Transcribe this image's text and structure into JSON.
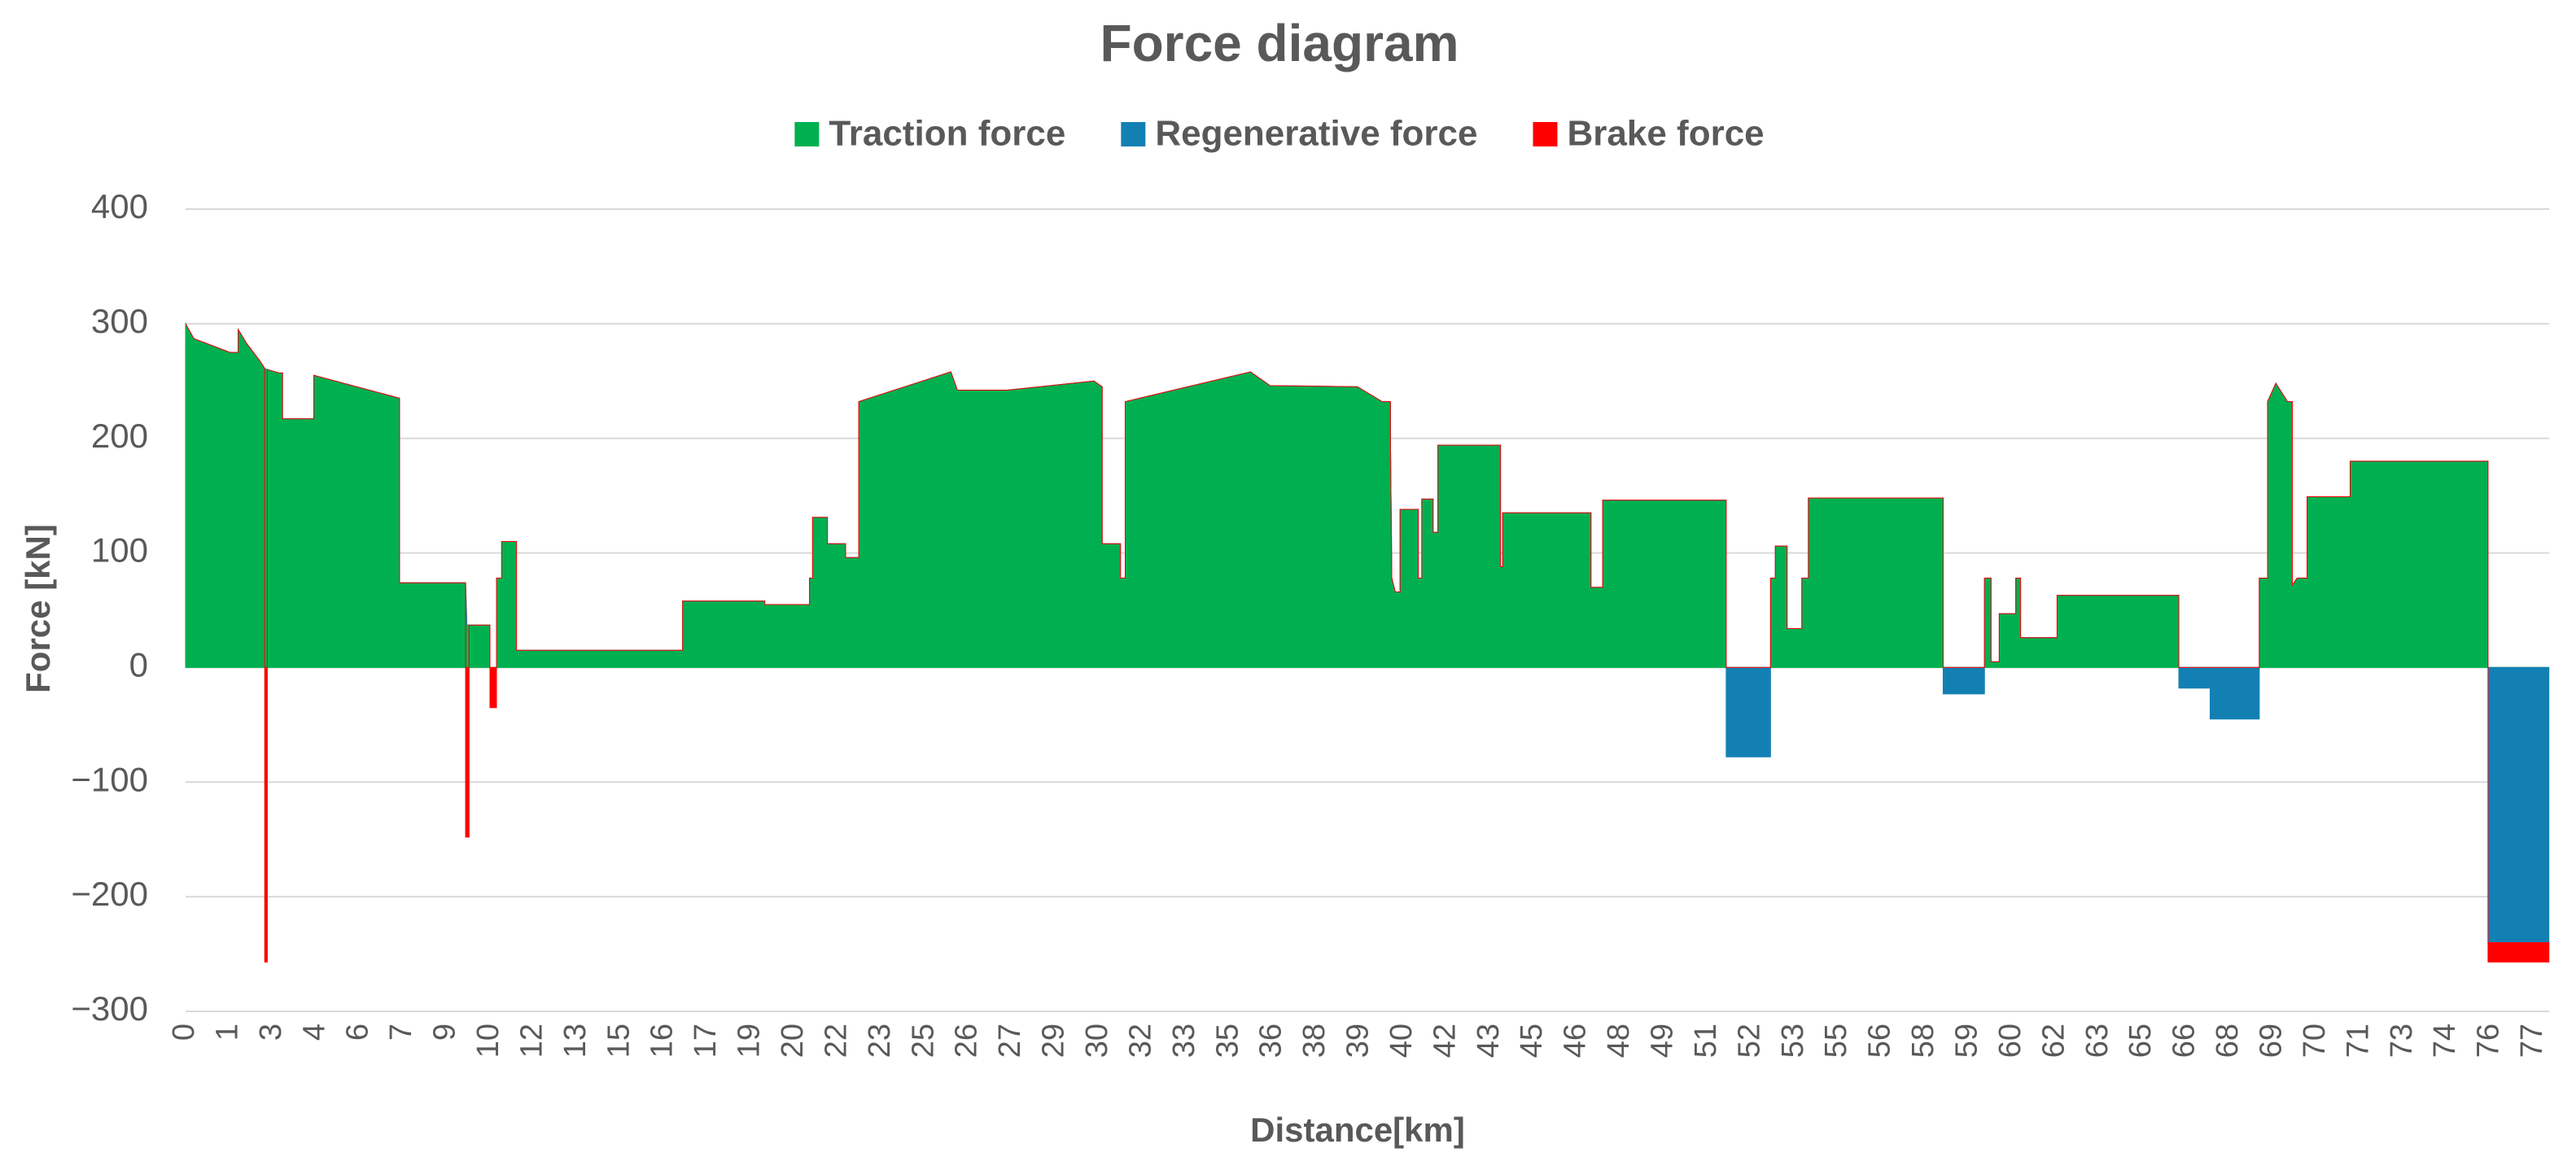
{
  "chart_data": {
    "type": "area",
    "title": "Force diagram",
    "x_label": "Distance[km]",
    "y_label": "Force [kN]",
    "stacked": true,
    "grid": true,
    "legend": "top",
    "xlim": [
      0,
      77.35
    ],
    "xticks": [
      0,
      1,
      3,
      4,
      6,
      7,
      9,
      10,
      12,
      13,
      15,
      16,
      17,
      19,
      20,
      22,
      23,
      25,
      26,
      27,
      29,
      30,
      32,
      33,
      35,
      36,
      38,
      39,
      40,
      42,
      43,
      45,
      46,
      48,
      49,
      51,
      52,
      53,
      55,
      56,
      58,
      59,
      60,
      62,
      63,
      65,
      66,
      68,
      69,
      70,
      71,
      73,
      74,
      76,
      77
    ],
    "ylim": [
      -300,
      400
    ],
    "yticks": [
      {
        "value": -300,
        "label": "−300"
      },
      {
        "value": -200,
        "label": "−200"
      },
      {
        "value": -100,
        "label": "−100"
      },
      0,
      100,
      200,
      300,
      400
    ],
    "x": [
      0,
      0.19,
      1.04,
      1.42,
      1.42,
      1.8,
      2.4,
      2.64,
      2.64,
      2.76,
      2.76,
      3.16,
      3.23,
      3.23,
      3.95,
      3.95,
      6.92,
      6.92,
      9.44,
      9.44,
      9.47,
      9.52,
      9.52,
      10.0,
      10.0,
      10.3,
      10.3,
      10.54,
      10.54,
      11.22,
      11.22,
      16.43,
      16.43,
      19.32,
      19.32,
      20.7,
      20.7,
      20.84,
      20.84,
      21.52,
      21.52,
      22.18,
      22.18,
      22.48,
      22.48,
      25.6,
      25.75,
      26.89,
      29.89,
      30.16,
      30.16,
      31.0,
      31.0,
      31.22,
      31.22,
      35.49,
      35.94,
      38.95,
      39.52,
      39.71,
      39.71,
      39.74,
      39.82,
      39.93,
      39.93,
      40.7,
      40.7,
      40.86,
      40.86,
      41.38,
      41.38,
      41.6,
      41.6,
      43.48,
      43.48,
      43.58,
      43.58,
      46.64,
      46.64,
      47.18,
      47.18,
      51.43,
      51.43,
      52.45,
      52.45,
      52.56,
      52.56,
      52.83,
      52.83,
      53.34,
      53.34,
      53.64,
      53.64,
      58.42,
      58.42,
      59.37,
      59.37,
      59.52,
      59.52,
      59.71,
      59.71,
      60.18,
      60.18,
      60.4,
      60.4,
      62.04,
      62.04,
      65.84,
      65.84,
      67.12,
      67.12,
      68.69,
      68.69,
      68.88,
      68.88,
      69.07,
      69.34,
      69.45,
      69.45,
      69.56,
      69.79,
      69.79,
      70.78,
      70.78,
      75.9,
      75.9,
      77.35
    ],
    "series": [
      {
        "name": "Traction force",
        "color": "#00b050",
        "values": [
          300,
          287,
          275,
          275,
          295,
          283,
          268,
          261,
          261,
          260,
          260,
          257,
          257,
          217,
          217,
          255,
          235,
          74,
          74,
          74,
          37,
          37,
          37,
          37,
          0,
          0,
          78,
          78,
          110,
          110,
          15,
          15,
          58,
          58,
          55,
          55,
          78,
          78,
          131,
          131,
          108,
          108,
          96,
          96,
          232,
          258,
          242,
          242,
          250,
          245,
          108,
          108,
          78,
          78,
          232,
          258,
          246,
          245,
          232,
          232,
          195,
          78,
          66,
          66,
          138,
          138,
          78,
          78,
          147,
          147,
          118,
          118,
          194,
          194,
          88,
          88,
          135,
          135,
          70,
          70,
          146,
          146,
          0,
          0,
          78,
          78,
          106,
          106,
          34,
          34,
          78,
          78,
          148,
          148,
          0,
          0,
          78,
          78,
          5,
          5,
          47,
          47,
          78,
          78,
          26,
          26,
          63,
          63,
          0,
          0,
          0,
          0,
          78,
          78,
          232,
          248,
          232,
          232,
          72,
          78,
          78,
          149,
          149,
          180,
          180,
          0,
          0
        ]
      },
      {
        "name": "Regenerative force",
        "color": "#1380b4",
        "values": [
          0,
          0,
          0,
          0,
          0,
          0,
          0,
          0,
          0,
          0,
          0,
          0,
          0,
          0,
          0,
          0,
          0,
          0,
          0,
          0,
          0,
          0,
          0,
          0,
          0,
          0,
          0,
          0,
          0,
          0,
          0,
          0,
          0,
          0,
          0,
          0,
          0,
          0,
          0,
          0,
          0,
          0,
          0,
          0,
          0,
          0,
          0,
          0,
          0,
          0,
          0,
          0,
          0,
          0,
          0,
          0,
          0,
          0,
          0,
          0,
          0,
          0,
          0,
          0,
          0,
          0,
          0,
          0,
          0,
          0,
          0,
          0,
          0,
          0,
          0,
          0,
          0,
          0,
          0,
          0,
          0,
          0,
          -78,
          -78,
          0,
          0,
          0,
          0,
          0,
          0,
          0,
          0,
          0,
          0,
          -23,
          -23,
          0,
          0,
          0,
          0,
          0,
          0,
          0,
          0,
          0,
          0,
          0,
          0,
          -18,
          -18,
          -45,
          -45,
          0,
          0,
          0,
          0,
          0,
          0,
          0,
          0,
          0,
          0,
          0,
          0,
          0,
          -240,
          -240
        ]
      },
      {
        "name": "Brake force",
        "color": "#ff0000",
        "values": [
          0,
          0,
          0,
          0,
          0,
          0,
          0,
          0,
          -257,
          -257,
          0,
          0,
          0,
          0,
          0,
          0,
          0,
          0,
          0,
          -148,
          -148,
          -148,
          0,
          0,
          -35,
          -35,
          0,
          0,
          0,
          0,
          0,
          0,
          0,
          0,
          0,
          0,
          0,
          0,
          0,
          0,
          0,
          0,
          0,
          0,
          0,
          0,
          0,
          0,
          0,
          0,
          0,
          0,
          0,
          0,
          0,
          0,
          0,
          0,
          0,
          0,
          0,
          0,
          0,
          0,
          0,
          0,
          0,
          0,
          0,
          0,
          0,
          0,
          0,
          0,
          0,
          0,
          0,
          0,
          0,
          0,
          0,
          0,
          0,
          0,
          0,
          0,
          0,
          0,
          0,
          0,
          0,
          0,
          0,
          0,
          0,
          0,
          0,
          0,
          0,
          0,
          0,
          0,
          0,
          0,
          0,
          0,
          0,
          0,
          0,
          0,
          0,
          0,
          0,
          0,
          0,
          0,
          0,
          0,
          0,
          0,
          0,
          0,
          0,
          0,
          0,
          -17,
          -17
        ]
      }
    ]
  }
}
